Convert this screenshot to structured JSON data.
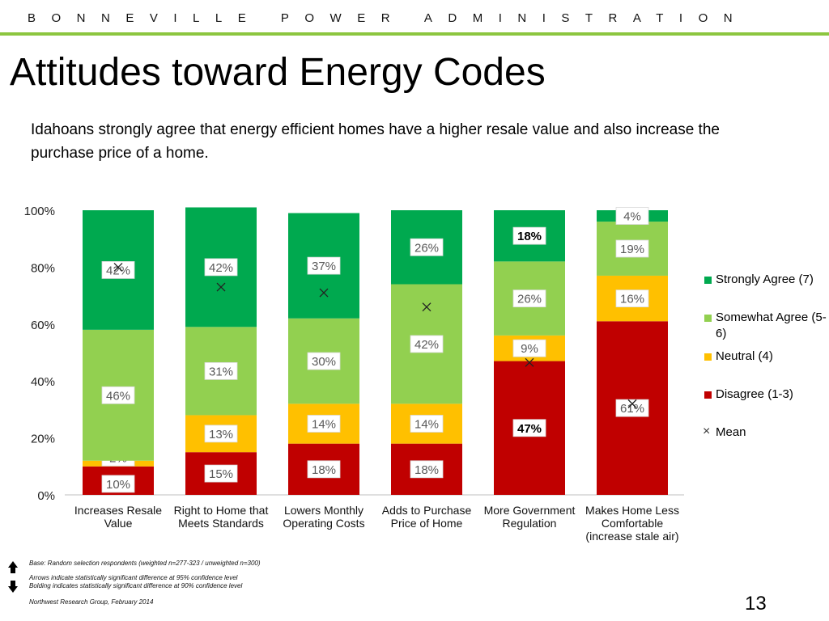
{
  "header": {
    "organization": "BONNEVILLE POWER ADMINISTRATION",
    "title": "Attitudes toward Energy Codes",
    "subtitle": "Idahoans strongly agree that energy efficient homes have a higher resale value and also increase the purchase price of a home."
  },
  "colors": {
    "strongly_agree": "#00a94f",
    "somewhat_agree": "#92d050",
    "neutral": "#ffc000",
    "disagree": "#c00000",
    "accent": "#8cc63f"
  },
  "chart_data": {
    "type": "bar",
    "stacked": true,
    "ylim": [
      0,
      100
    ],
    "yticks": [
      "0%",
      "20%",
      "40%",
      "60%",
      "80%",
      "100%"
    ],
    "categories": [
      "Increases Resale Value",
      "Right to Home that Meets Standards",
      "Lowers Monthly Operating Costs",
      "Adds to Purchase Price of Home",
      "More Government Regulation",
      "Makes Home Less Comfortable (increase stale air)"
    ],
    "category_lines": [
      [
        "Increases Resale",
        "Value"
      ],
      [
        "Right to Home that",
        "Meets Standards"
      ],
      [
        "Lowers Monthly",
        "Operating Costs"
      ],
      [
        "Adds to Purchase",
        "Price of Home"
      ],
      [
        "More Government",
        "Regulation"
      ],
      [
        "Makes Home Less",
        "Comfortable",
        "(increase stale air)"
      ]
    ],
    "series": [
      {
        "name": "Disagree (1-3)",
        "values": [
          10,
          15,
          18,
          18,
          47,
          61
        ],
        "labels": [
          "10%",
          "15%",
          "18%",
          "18%",
          "47%",
          "61%"
        ],
        "bold": [
          false,
          false,
          false,
          false,
          true,
          false
        ]
      },
      {
        "name": "Neutral (4)",
        "values": [
          2,
          13,
          14,
          14,
          9,
          16
        ],
        "labels": [
          "2%",
          "13%",
          "14%",
          "14%",
          "9%",
          "16%"
        ],
        "bold": [
          false,
          false,
          false,
          false,
          false,
          false
        ]
      },
      {
        "name": "Somewhat Agree (5-6)",
        "values": [
          46,
          31,
          30,
          42,
          26,
          19
        ],
        "labels": [
          "46%",
          "31%",
          "30%",
          "42%",
          "26%",
          "19%"
        ],
        "bold": [
          false,
          false,
          false,
          false,
          false,
          false
        ]
      },
      {
        "name": "Strongly Agree (7)",
        "values": [
          42,
          42,
          37,
          26,
          18,
          4
        ],
        "labels": [
          "42%",
          "42%",
          "37%",
          "26%",
          "18%",
          "4%"
        ],
        "bold": [
          false,
          false,
          false,
          false,
          true,
          false
        ]
      }
    ],
    "mean": {
      "name": "Mean",
      "values": [
        80,
        73,
        71,
        66,
        46.5,
        32
      ]
    },
    "legend": {
      "position": "right",
      "entries": [
        "Strongly Agree (7)",
        "Somewhat Agree (5-6)",
        "Neutral (4)",
        "Disagree (1-3)",
        "Mean"
      ]
    }
  },
  "footnotes": {
    "base": "Base: Random selection respondents (weighted n=277-323 / unweighted n=300)",
    "arrows": "Arrows indicate statistically significant difference at 95% confidence level",
    "bolding": "Bolding indicates statistically significant difference at 90% confidence level",
    "source": "Northwest Research Group, February 2014"
  },
  "page_number": "13"
}
